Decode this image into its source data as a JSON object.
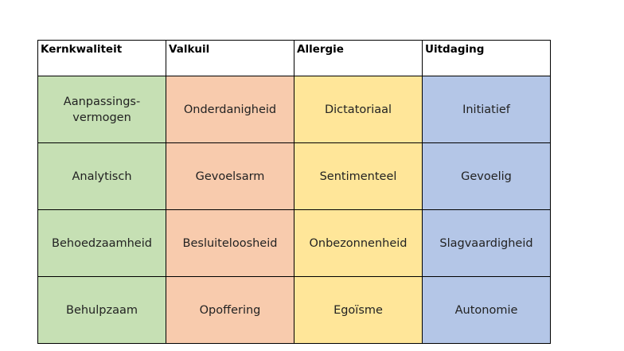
{
  "table": {
    "header": [
      "Kernkwaliteit",
      "Valkuil",
      "Allergie",
      "Uitdaging"
    ],
    "rows": [
      [
        "Aanpassings-\nvermogen",
        "Onderdanigheid",
        "Dictatoriaal",
        "Initiatief"
      ],
      [
        "Analytisch",
        "Gevoelsarm",
        "Sentimenteel",
        "Gevoelig"
      ],
      [
        "Behoedzaamheid",
        "Besluiteloosheid",
        "Onbezonnenheid",
        "Slagvaardigheid"
      ],
      [
        "Behulpzaam",
        "Opoffering",
        "Egoïsme",
        "Autonomie"
      ]
    ],
    "column_colors": [
      "#c6e0b4",
      "#f8cbad",
      "#ffe699",
      "#b4c6e7"
    ]
  }
}
